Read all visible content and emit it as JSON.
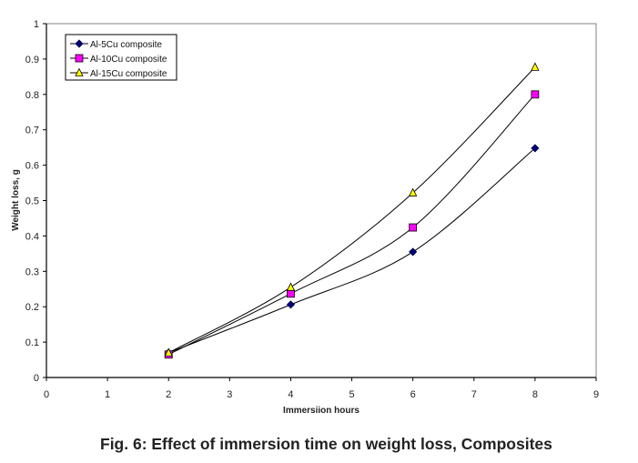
{
  "caption": "Fig. 6: Effect of immersion time on weight loss, Composites",
  "chart_data": {
    "type": "line",
    "title": "",
    "xlabel": "Immersiion hours",
    "ylabel": "Weight loss, g",
    "xlim": [
      0,
      9
    ],
    "ylim": [
      0,
      1
    ],
    "xticks": [
      0,
      1,
      2,
      3,
      4,
      5,
      6,
      7,
      8,
      9
    ],
    "yticks": [
      0,
      0.1,
      0.2,
      0.3,
      0.4,
      0.5,
      0.6,
      0.7,
      0.8,
      0.9,
      1
    ],
    "ytick_labels": [
      "0",
      "0.1",
      "0.2",
      "0.3",
      "0.4",
      "0.5",
      "0.6",
      "0.7",
      "0.8",
      "0.9",
      "1"
    ],
    "grid": false,
    "legend_position": "top-left",
    "x": [
      2,
      4,
      6,
      8
    ],
    "series": [
      {
        "name": "Al-5Cu composite",
        "marker": "diamond",
        "marker_color": "#000080",
        "values": [
          0.07,
          0.206,
          0.355,
          0.648
        ]
      },
      {
        "name": "Al-10Cu composite",
        "marker": "square",
        "marker_color": "#ff00ff",
        "values": [
          0.065,
          0.237,
          0.424,
          0.8
        ]
      },
      {
        "name": "Al-15Cu composite",
        "marker": "triangle",
        "marker_color": "#ffff00",
        "values": [
          0.07,
          0.255,
          0.522,
          0.877
        ]
      }
    ]
  }
}
